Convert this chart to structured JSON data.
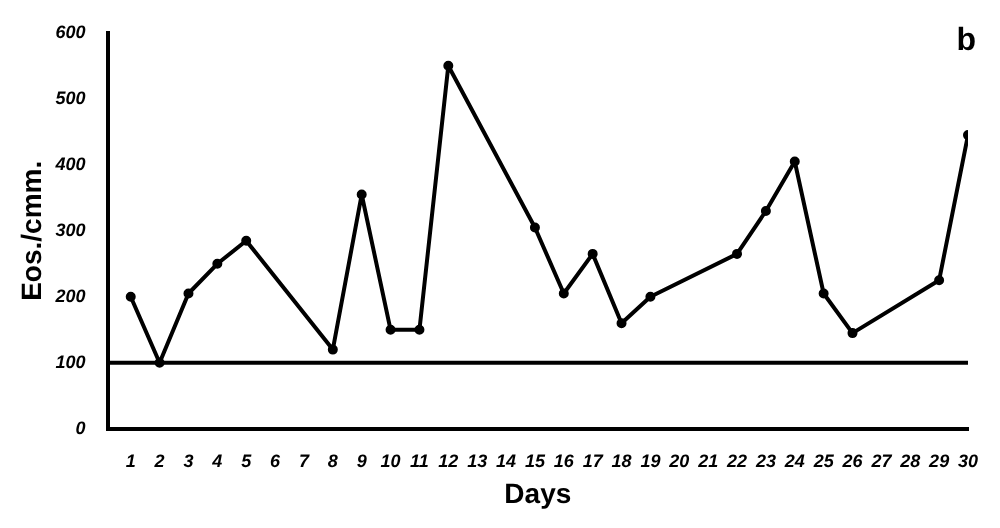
{
  "chart_data": {
    "type": "line",
    "title": "b",
    "xlabel": "Days",
    "ylabel": "Eos./cmm.",
    "x": [
      1,
      2,
      3,
      4,
      5,
      8,
      9,
      10,
      11,
      12,
      15,
      16,
      17,
      18,
      19,
      22,
      23,
      24,
      25,
      26,
      29,
      30
    ],
    "values": [
      200,
      100,
      205,
      250,
      285,
      120,
      355,
      150,
      150,
      550,
      305,
      205,
      265,
      160,
      200,
      265,
      330,
      405,
      205,
      145,
      225,
      445
    ],
    "color": "#000000",
    "marker": "circle",
    "line_style": "solid",
    "grid": false,
    "legend": false,
    "xlim": [
      0.2,
      30
    ],
    "xticks": [
      1,
      2,
      3,
      4,
      5,
      6,
      7,
      8,
      9,
      10,
      11,
      12,
      13,
      14,
      15,
      16,
      17,
      18,
      19,
      20,
      21,
      22,
      23,
      24,
      25,
      26,
      27,
      28,
      29,
      30
    ],
    "ylim": [
      0,
      600
    ],
    "yticks": [
      0,
      100,
      200,
      300,
      400,
      500,
      600
    ],
    "ref_lines": [
      {
        "axis": "y",
        "value": 100,
        "color": "#000000",
        "line_style": "solid"
      }
    ]
  }
}
